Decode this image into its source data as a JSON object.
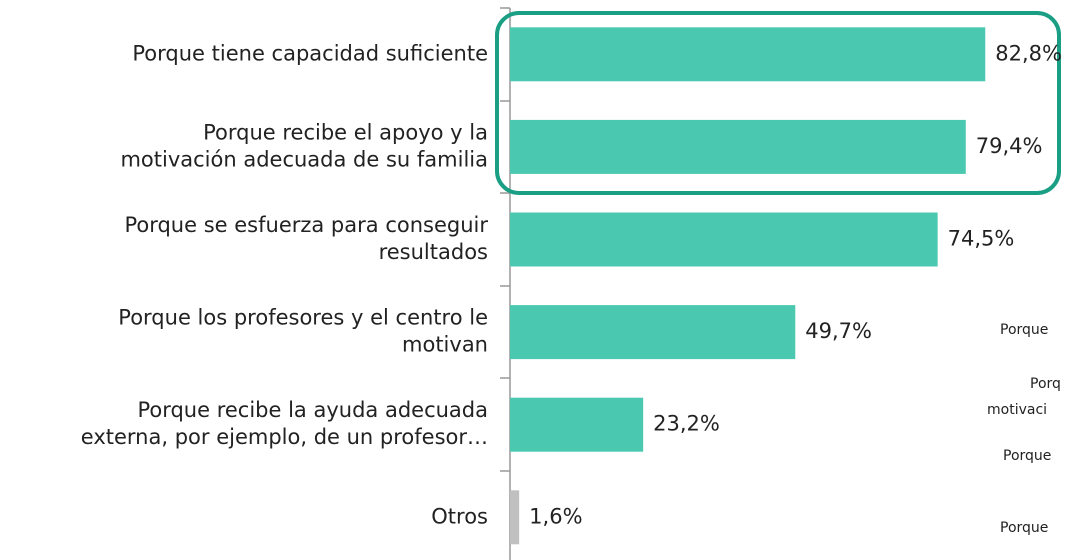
{
  "chart_data": {
    "type": "bar",
    "orientation": "horizontal",
    "categories": [
      [
        "Porque tiene capacidad suficiente"
      ],
      [
        "Porque recibe el apoyo y la",
        "motivación adecuada de su familia"
      ],
      [
        "Porque se esfuerza para conseguir",
        "resultados"
      ],
      [
        "Porque los profesores y el centro le",
        "motivan"
      ],
      [
        "Porque recibe la ayuda adecuada",
        "externa, por ejemplo, de un profesor…"
      ],
      [
        "Otros"
      ]
    ],
    "values": [
      82.8,
      79.4,
      74.5,
      49.7,
      23.2,
      1.6
    ],
    "value_labels": [
      "82,8%",
      "79,4%",
      "74,5%",
      "49,7%",
      "23,2%",
      "1,6%"
    ],
    "colors": [
      "#4bc9b0",
      "#4bc9b0",
      "#4bc9b0",
      "#4bc9b0",
      "#4bc9b0",
      "#c0c0c0"
    ],
    "annotations": [
      "Porque",
      "Porq",
      "motivaci",
      "Porque",
      "Porque"
    ]
  }
}
